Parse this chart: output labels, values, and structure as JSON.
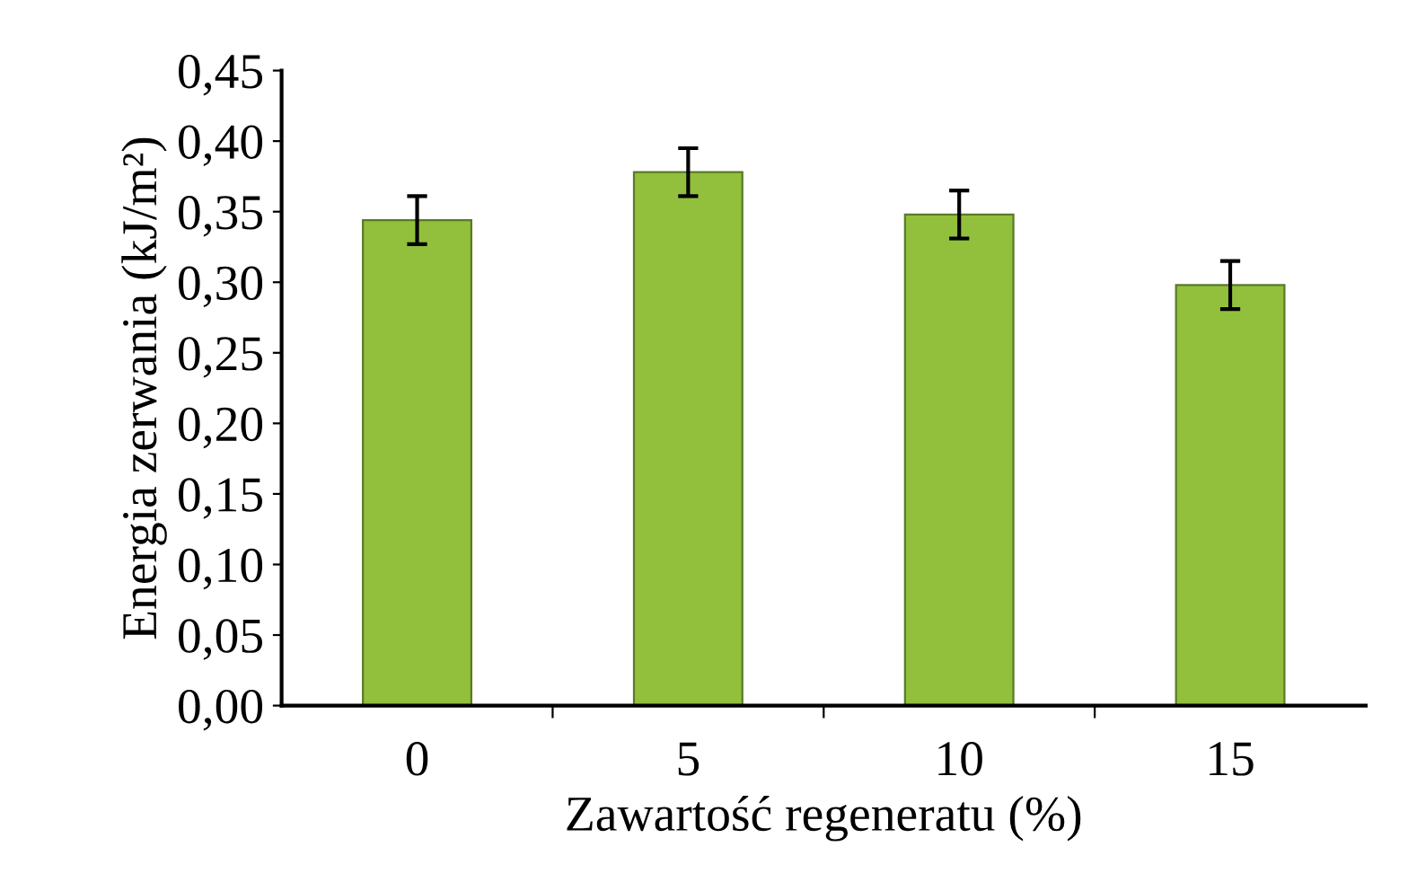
{
  "chart_data": {
    "type": "bar",
    "xlabel": "Zawartość regeneratu (%)",
    "ylabel": "Energia zerwania (kJ/m²)",
    "categories": [
      "0",
      "5",
      "10",
      "15"
    ],
    "values": [
      0.344,
      0.378,
      0.348,
      0.298
    ],
    "errors": [
      0.017,
      0.017,
      0.017,
      0.017
    ],
    "color": "#92c03c",
    "ylim": [
      0,
      0.45
    ],
    "yticks": [
      {
        "value": 0,
        "label": "0,00"
      },
      {
        "value": 0.05,
        "label": "0,05"
      },
      {
        "value": 0.1,
        "label": "0,10"
      },
      {
        "value": 0.15,
        "label": "0,15"
      },
      {
        "value": 0.2,
        "label": "0,20"
      },
      {
        "value": 0.25,
        "label": "0,25"
      },
      {
        "value": 0.3,
        "label": "0,30"
      },
      {
        "value": 0.35,
        "label": "0,35"
      },
      {
        "value": 0.4,
        "label": "0,40"
      },
      {
        "value": 0.45,
        "label": "0,45"
      }
    ],
    "grid": false,
    "legend": false
  }
}
